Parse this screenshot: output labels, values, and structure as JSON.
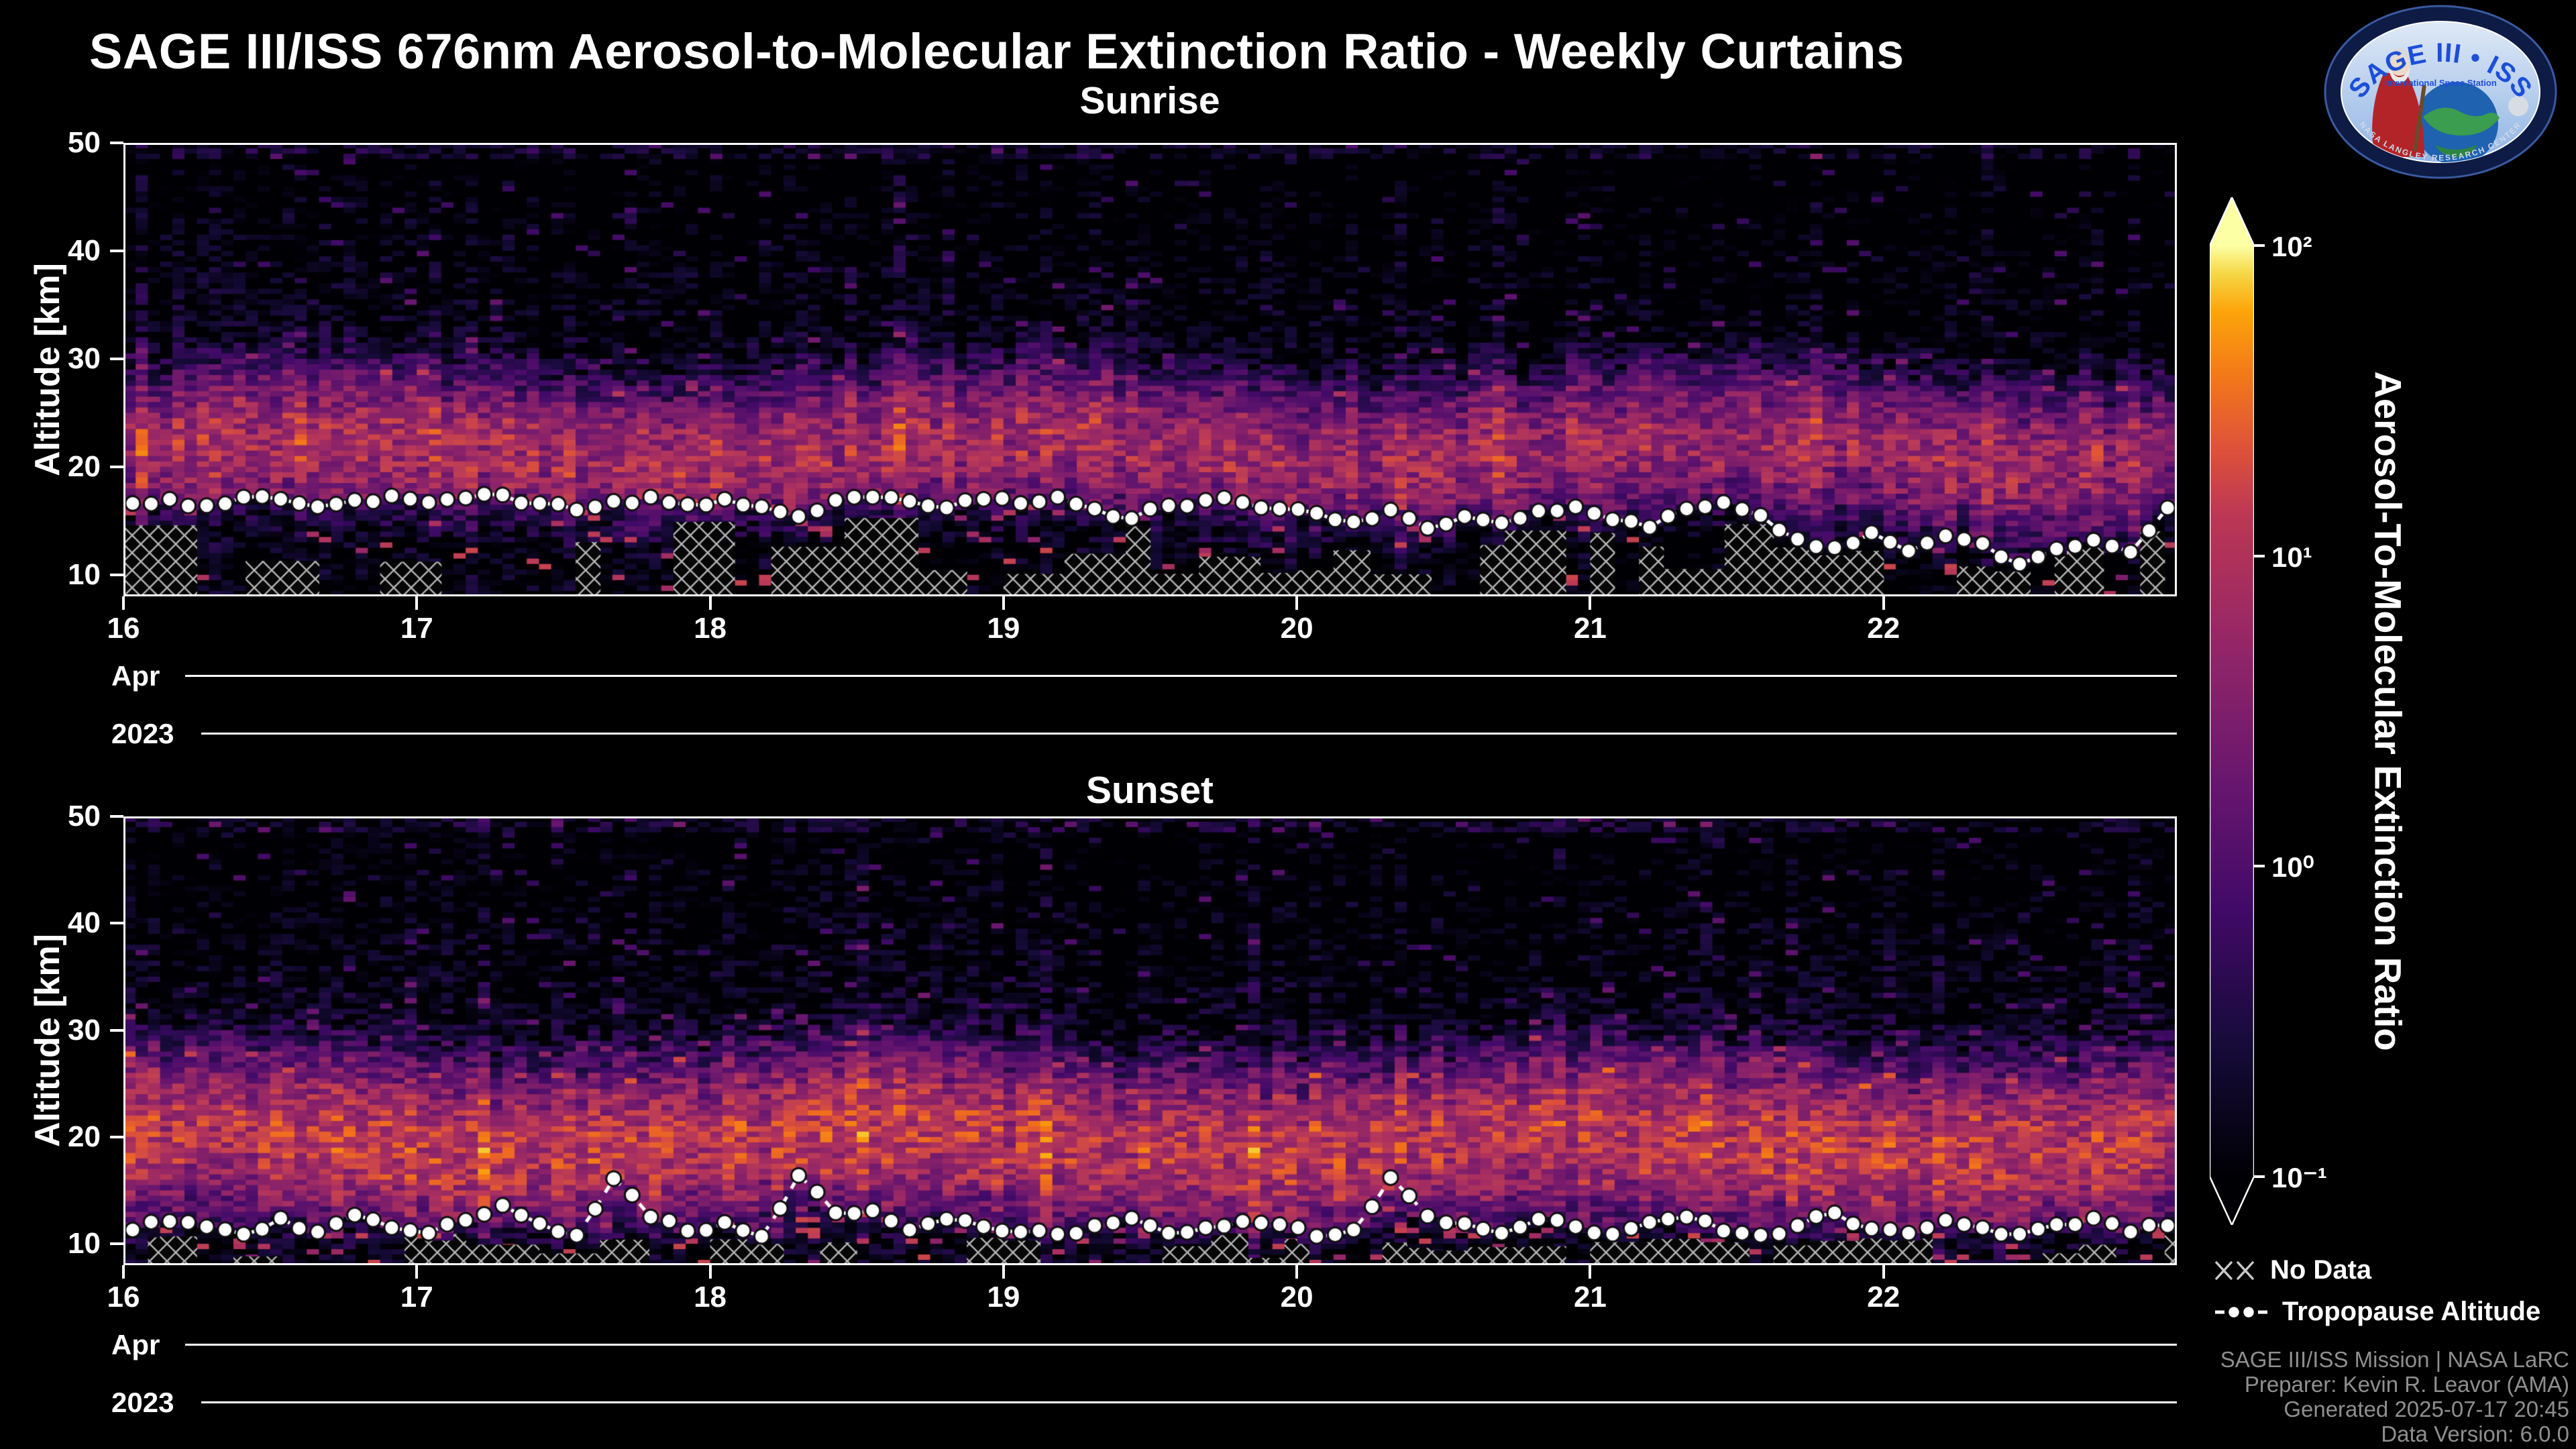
{
  "header": {
    "title": "SAGE III/ISS 676nm Aerosol-to-Molecular Extinction Ratio - Weekly Curtains"
  },
  "logo": {
    "title": "SAGE III • ISS",
    "subtitle": "International Space Station",
    "ring_text": "NASA LANGLEY RESEARCH CENTER"
  },
  "colorbar": {
    "label": "Aerosol-To-Molecular Extinction Ratio",
    "scale": "log",
    "colormap": "inferno",
    "ticks": [
      {
        "label": "10²",
        "value": 100
      },
      {
        "label": "10¹",
        "value": 10
      },
      {
        "label": "10⁰",
        "value": 1
      },
      {
        "label": "10⁻¹",
        "value": 0.1
      }
    ],
    "stops": [
      [
        "0.00",
        "#000004"
      ],
      [
        "0.14",
        "#160b39"
      ],
      [
        "0.29",
        "#420a68"
      ],
      [
        "0.43",
        "#6a176e"
      ],
      [
        "0.57",
        "#932667"
      ],
      [
        "0.71",
        "#bc3754"
      ],
      [
        "0.78",
        "#dd513a"
      ],
      [
        "0.86",
        "#f37819"
      ],
      [
        "0.93",
        "#fca50a"
      ],
      [
        "0.97",
        "#f6d746"
      ],
      [
        "1.00",
        "#fcffa4"
      ]
    ]
  },
  "legend": {
    "no_data": "No Data",
    "tropopause": "Tropopause Altitude"
  },
  "footer": {
    "line1": "SAGE III/ISS Mission | NASA LaRC",
    "line2": "Preparer: Kevin R. Leavor (AMA)",
    "line3": "Generated 2025-07-17 20:45",
    "line4": "Data Version: 6.0.0"
  },
  "chart_data": [
    {
      "type": "heatmap",
      "title": "Sunrise",
      "ylabel": "Altitude [km]",
      "ylim": [
        8,
        50
      ],
      "yticks": [
        10,
        20,
        30,
        40,
        50
      ],
      "xticks": [
        16,
        17,
        18,
        19,
        20,
        21,
        22
      ],
      "x_month": "Apr",
      "x_year": "2023",
      "value_range": [
        0.1,
        100
      ],
      "scale": "log",
      "aerosol_layer": {
        "center_km": 21.5,
        "sigma_km": 3.1,
        "peak_ratio": 7
      },
      "upper_bg": 0.16,
      "amp_base": 0.55,
      "amp_var": 0.8,
      "trend": 0.4,
      "low_bright": 0.05,
      "mask_prob": 0.55,
      "mask_base": 10,
      "mask_var": 5.5,
      "tropopause_km": [
        16.6,
        17.0,
        16.4,
        17.2,
        17.0,
        16.3,
        16.9,
        17.3,
        16.7,
        17.1,
        17.4,
        16.6,
        16.0,
        16.8,
        17.2,
        16.5,
        17.0,
        16.3,
        15.4,
        16.9,
        17.2,
        16.8,
        16.2,
        17.0,
        16.6,
        17.2,
        16.1,
        15.2,
        16.4,
        16.9,
        16.7,
        16.1,
        15.7,
        14.9,
        16.0,
        14.3,
        15.4,
        14.8,
        15.9,
        16.3,
        15.1,
        14.4,
        16.1,
        16.7,
        15.5,
        13.3,
        12.5,
        13.9,
        12.2,
        13.6,
        12.9,
        11.0,
        12.4,
        13.2,
        12.1,
        16.2
      ]
    },
    {
      "type": "heatmap",
      "title": "Sunset",
      "ylabel": "Altitude [km]",
      "ylim": [
        8,
        50
      ],
      "yticks": [
        10,
        20,
        30,
        40,
        50
      ],
      "xticks": [
        16,
        17,
        18,
        19,
        20,
        21,
        22
      ],
      "x_month": "Apr",
      "x_year": "2023",
      "value_range": [
        0.1,
        100
      ],
      "scale": "log",
      "aerosol_layer": {
        "center_km": 19.5,
        "sigma_km": 3.4,
        "peak_ratio": 9
      },
      "upper_bg": 0.14,
      "amp_base": 0.7,
      "amp_var": 1.0,
      "trend": 0.05,
      "low_bright": 0.1,
      "mask_prob": 0.5,
      "mask_base": 8.6,
      "mask_var": 2.4,
      "tropopause_km": [
        11.3,
        12.1,
        11.6,
        10.9,
        12.4,
        11.1,
        12.7,
        11.5,
        11.0,
        12.2,
        13.6,
        11.9,
        10.8,
        16.1,
        12.5,
        11.2,
        12.0,
        10.7,
        16.4,
        12.9,
        13.1,
        11.3,
        12.3,
        11.6,
        11.1,
        10.9,
        11.7,
        12.4,
        11.0,
        11.5,
        12.1,
        11.8,
        10.7,
        11.3,
        16.2,
        12.6,
        11.9,
        11.0,
        12.3,
        11.6,
        10.9,
        12.0,
        12.5,
        11.2,
        10.8,
        11.7,
        12.9,
        11.4,
        11.0,
        12.2,
        11.5,
        10.9,
        11.8,
        12.4,
        11.1,
        11.7
      ]
    }
  ]
}
